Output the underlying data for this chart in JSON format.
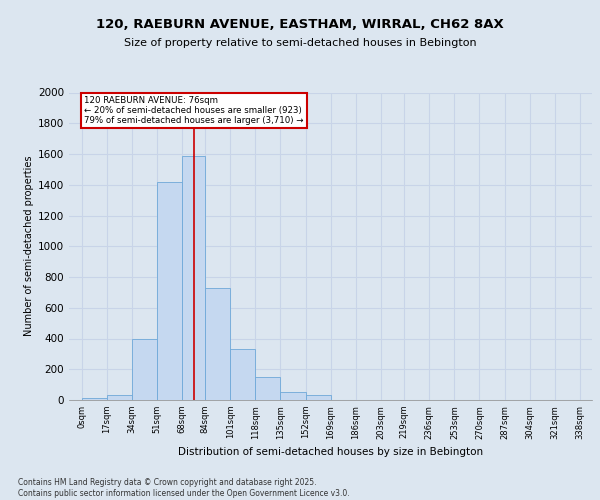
{
  "title_line1": "120, RAEBURN AVENUE, EASTHAM, WIRRAL, CH62 8AX",
  "title_line2": "Size of property relative to semi-detached houses in Bebington",
  "xlabel": "Distribution of semi-detached houses by size in Bebington",
  "ylabel": "Number of semi-detached properties",
  "bin_edges": [
    0,
    17,
    34,
    51,
    68,
    84,
    101,
    118,
    135,
    152,
    169,
    186,
    203,
    219,
    236,
    253,
    270,
    287,
    304,
    321,
    338
  ],
  "bin_labels": [
    "0sqm",
    "17sqm",
    "34sqm",
    "51sqm",
    "68sqm",
    "84sqm",
    "101sqm",
    "118sqm",
    "135sqm",
    "152sqm",
    "169sqm",
    "186sqm",
    "203sqm",
    "219sqm",
    "236sqm",
    "253sqm",
    "270sqm",
    "287sqm",
    "304sqm",
    "321sqm",
    "338sqm"
  ],
  "bar_values": [
    10,
    30,
    400,
    1420,
    1590,
    730,
    330,
    150,
    50,
    30,
    0,
    0,
    0,
    0,
    0,
    0,
    0,
    0,
    0,
    0
  ],
  "bar_color": "#c5d8f0",
  "bar_edge_color": "#6ea8d8",
  "red_line_x": 76,
  "annotation_text_line1": "120 RAEBURN AVENUE: 76sqm",
  "annotation_text_line2": "← 20% of semi-detached houses are smaller (923)",
  "annotation_text_line3": "79% of semi-detached houses are larger (3,710) →",
  "annotation_box_color": "#ffffff",
  "annotation_border_color": "#cc0000",
  "grid_color": "#c8d4e8",
  "background_color": "#dce6f0",
  "plot_bg_color": "#dce6f0",
  "ylim": [
    0,
    2000
  ],
  "yticks": [
    0,
    200,
    400,
    600,
    800,
    1000,
    1200,
    1400,
    1600,
    1800,
    2000
  ],
  "footnote": "Contains HM Land Registry data © Crown copyright and database right 2025.\nContains public sector information licensed under the Open Government Licence v3.0."
}
